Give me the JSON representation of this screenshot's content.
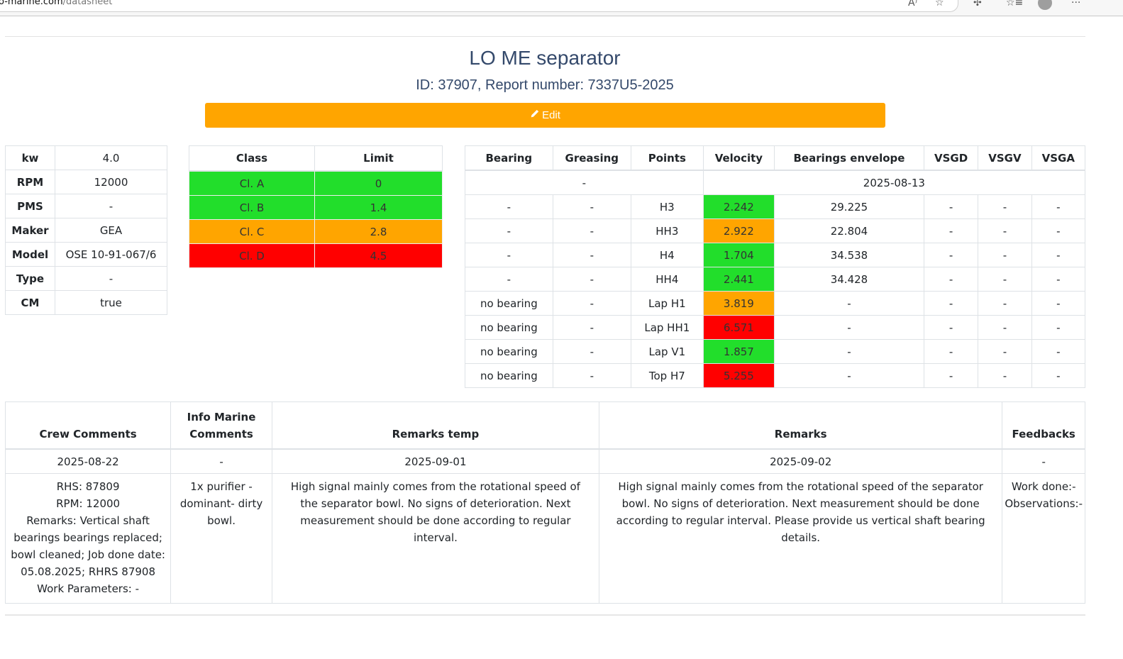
{
  "browser": {
    "url_host": "o-marine.com",
    "url_path": "/datasheet",
    "icons": [
      "read-aloud-icon",
      "favorite-star-icon",
      "extensions-icon",
      "favorites-list-icon",
      "profile-avatar-icon",
      "more-options-icon"
    ]
  },
  "header": {
    "title": "LO ME separator",
    "subtitle": "ID: 37907, Report number: 7337U5-2025",
    "edit_label": "Edit",
    "edit_icon": "pencil-icon"
  },
  "specs": [
    {
      "key": "kw",
      "value": "4.0"
    },
    {
      "key": "RPM",
      "value": "12000"
    },
    {
      "key": "PMS",
      "value": "-"
    },
    {
      "key": "Maker",
      "value": "GEA"
    },
    {
      "key": "Model",
      "value": "OSE 10-91-067/6"
    },
    {
      "key": "Type",
      "value": "-"
    },
    {
      "key": "CM",
      "value": "true"
    }
  ],
  "classes": {
    "headers": [
      "Class",
      "Limit"
    ],
    "rows": [
      {
        "class": "Cl. A",
        "limit": "0",
        "color": "#22de2b"
      },
      {
        "class": "Cl. B",
        "limit": "1.4",
        "color": "#22de2b"
      },
      {
        "class": "Cl. C",
        "limit": "2.8",
        "color": "#ffa500"
      },
      {
        "class": "Cl. D",
        "limit": "4.5",
        "color": "#ff0000"
      }
    ]
  },
  "measurements": {
    "headers": [
      "Bearing",
      "Greasing",
      "Points",
      "Velocity",
      "Bearings envelope",
      "VSGD",
      "VSGV",
      "VSGA"
    ],
    "group_left": "-",
    "group_date": "2025-08-13",
    "rows": [
      {
        "bearing": "-",
        "greasing": "-",
        "point": "H3",
        "velocity": "2.242",
        "velocity_color": "#22de2b",
        "envelope": "29.225",
        "vsgd": "-",
        "vsgv": "-",
        "vsga": "-"
      },
      {
        "bearing": "-",
        "greasing": "-",
        "point": "HH3",
        "velocity": "2.922",
        "velocity_color": "#ffa500",
        "envelope": "22.804",
        "vsgd": "-",
        "vsgv": "-",
        "vsga": "-"
      },
      {
        "bearing": "-",
        "greasing": "-",
        "point": "H4",
        "velocity": "1.704",
        "velocity_color": "#22de2b",
        "envelope": "34.538",
        "vsgd": "-",
        "vsgv": "-",
        "vsga": "-"
      },
      {
        "bearing": "-",
        "greasing": "-",
        "point": "HH4",
        "velocity": "2.441",
        "velocity_color": "#22de2b",
        "envelope": "34.428",
        "vsgd": "-",
        "vsgv": "-",
        "vsga": "-"
      },
      {
        "bearing": "no bearing",
        "greasing": "-",
        "point": "Lap H1",
        "velocity": "3.819",
        "velocity_color": "#ffa500",
        "envelope": "-",
        "vsgd": "-",
        "vsgv": "-",
        "vsga": "-"
      },
      {
        "bearing": "no bearing",
        "greasing": "-",
        "point": "Lap HH1",
        "velocity": "6.571",
        "velocity_color": "#ff0000",
        "envelope": "-",
        "vsgd": "-",
        "vsgv": "-",
        "vsga": "-"
      },
      {
        "bearing": "no bearing",
        "greasing": "-",
        "point": "Lap V1",
        "velocity": "1.857",
        "velocity_color": "#22de2b",
        "envelope": "-",
        "vsgd": "-",
        "vsgv": "-",
        "vsga": "-"
      },
      {
        "bearing": "no bearing",
        "greasing": "-",
        "point": "Top H7",
        "velocity": "5.255",
        "velocity_color": "#ff0000",
        "envelope": "-",
        "vsgd": "-",
        "vsgv": "-",
        "vsga": "-"
      }
    ]
  },
  "comments": {
    "headers": {
      "crew": "Crew Comments",
      "info_line1": "Info Marine",
      "info_line2": "Comments",
      "remarks_temp": "Remarks temp",
      "remarks": "Remarks",
      "feedbacks": "Feedbacks"
    },
    "dates": {
      "crew": "2025-08-22",
      "info": "-",
      "remarks_temp": "2025-09-01",
      "remarks": "2025-09-02",
      "feedbacks": "-"
    },
    "crew_lines": [
      "RHS: 87809",
      "RPM: 12000",
      "Remarks: Vertical shaft bearings bearings replaced; bowl cleaned; Job done date: 05.08.2025; RHRS 87908",
      "Work Parameters: -"
    ],
    "info": "1x purifier - dominant- dirty bowl.",
    "remarks_temp": "High signal mainly comes from the rotational speed of the separator bowl. No signs of deterioration. Next measurement should be done according to regular interval.",
    "remarks": "High signal mainly comes from the rotational speed of the separator bowl. No signs of deterioration. Next measurement should be done according to regular interval. Please provide us vertical shaft bearing details.",
    "feedback_lines": [
      "Work done:-",
      "Observations:-"
    ]
  }
}
